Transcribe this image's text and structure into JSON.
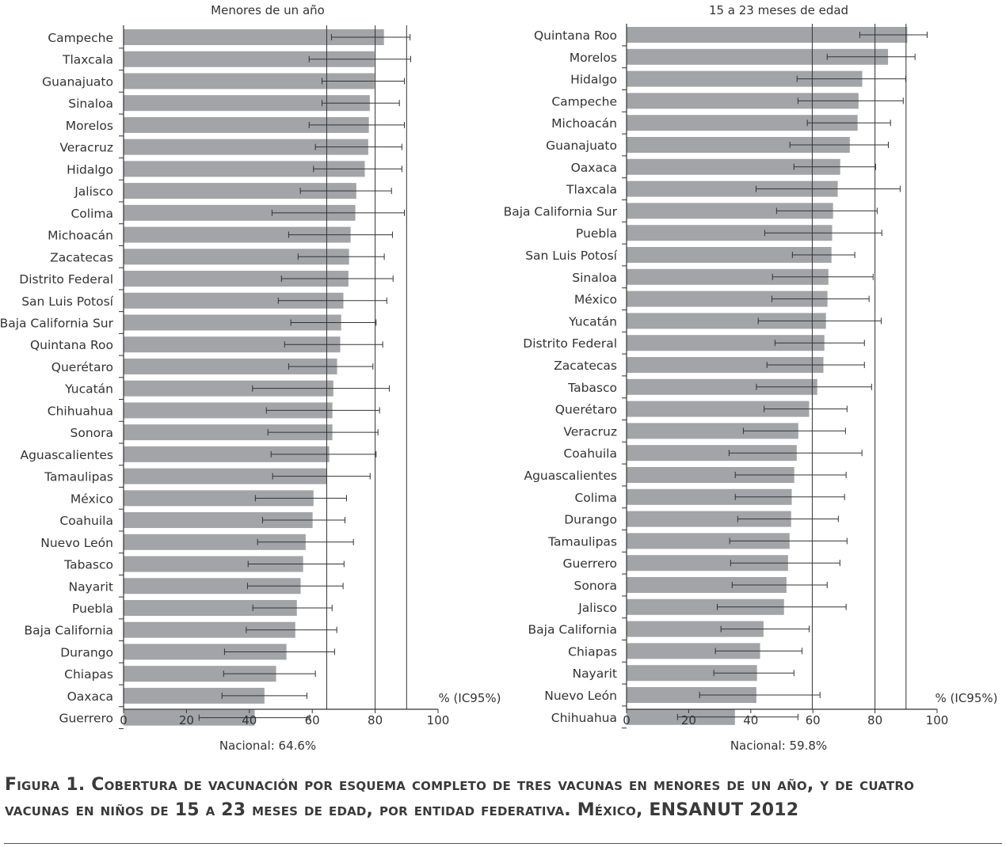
{
  "chart_data": [
    {
      "type": "bar",
      "orientation": "horizontal",
      "title": "Menores de un año",
      "xlabel": "% (IC95%)",
      "footer": "Nacional: 64.6%",
      "national": 64.6,
      "reference_lines": [
        80,
        90
      ],
      "xlim": [
        0,
        100
      ],
      "xticks": [
        "0",
        "20",
        "40",
        "60",
        "80",
        "100"
      ],
      "categories": [
        "Campeche",
        "Tlaxcala",
        "Guanajuato",
        "Sinaloa",
        "Morelos",
        "Veracruz",
        "Hidalgo",
        "Jalisco",
        "Colima",
        "Michoacán",
        "Zacatecas",
        "Distrito Federal",
        "San Luis Potosí",
        "Baja California Sur",
        "Quintana Roo",
        "Querétaro",
        "Yucatán",
        "Chihuahua",
        "Sonora",
        "Aguascalientes",
        "Tamaulipas",
        "México",
        "Coahuila",
        "Nuevo León",
        "Tabasco",
        "Nayarit",
        "Puebla",
        "Baja California",
        "Durango",
        "Chiapas",
        "Oaxaca",
        "Guerrero"
      ],
      "values": [
        82.8,
        79.8,
        79.8,
        78.3,
        78.0,
        77.8,
        76.7,
        74.0,
        73.7,
        72.2,
        71.7,
        71.5,
        69.9,
        69.2,
        68.9,
        67.9,
        66.7,
        66.4,
        66.4,
        65.4,
        64.7,
        60.4,
        60.1,
        57.9,
        57.1,
        56.3,
        55.1,
        54.6,
        51.8,
        48.5,
        44.8,
        41.7
      ],
      "ci_low": [
        66.1,
        59.0,
        63.1,
        63.1,
        59.0,
        61.0,
        60.4,
        56.2,
        47.2,
        52.5,
        55.5,
        50.2,
        49.2,
        53.2,
        51.2,
        52.5,
        41.0,
        45.4,
        45.9,
        46.9,
        47.4,
        41.9,
        44.2,
        42.6,
        39.6,
        39.4,
        41.1,
        39.0,
        32.1,
        31.8,
        31.3,
        24.0
      ],
      "ci_high": [
        91.1,
        91.3,
        89.3,
        87.7,
        89.3,
        88.5,
        88.5,
        85.2,
        89.3,
        85.5,
        82.9,
        85.7,
        83.7,
        80.3,
        82.4,
        79.3,
        84.5,
        81.4,
        80.9,
        80.3,
        78.4,
        70.9,
        70.4,
        73.1,
        70.1,
        69.8,
        66.3,
        67.8,
        67.1,
        61.0,
        58.3,
        59.2
      ],
      "bar_color": "#a3a4a8"
    },
    {
      "type": "bar",
      "orientation": "horizontal",
      "title": "15 a 23 meses de edad",
      "xlabel": "% (IC95%)",
      "footer": "Nacional: 59.8%",
      "national": 59.8,
      "reference_lines": [
        80,
        90
      ],
      "xlim": [
        0,
        100
      ],
      "xticks": [
        "0",
        "20",
        "40",
        "60",
        "80",
        "100"
      ],
      "categories": [
        "Quintana Roo",
        "Morelos",
        "Hidalgo",
        "Campeche",
        "Michoacán",
        "Guanajuato",
        "Oaxaca",
        "Tlaxcala",
        "Baja California Sur",
        "Puebla",
        "San Luis Potosí",
        "Sinaloa",
        "México",
        "Yucatán",
        "Distrito Federal",
        "Zacatecas",
        "Tabasco",
        "Querétaro",
        "Veracruz",
        "Coahuila",
        "Aguascalientes",
        "Colima",
        "Durango",
        "Tamaulipas",
        "Guerrero",
        "Sonora",
        "Jalisco",
        "Baja California",
        "Chiapas",
        "Nayarit",
        "Nuevo León",
        "Chihuahua"
      ],
      "values": [
        90.4,
        84.2,
        75.9,
        74.7,
        74.4,
        71.9,
        68.8,
        68.0,
        66.5,
        66.2,
        66.0,
        65.0,
        64.7,
        64.2,
        63.7,
        63.4,
        61.4,
        58.8,
        55.3,
        54.8,
        54.0,
        53.2,
        53.0,
        52.5,
        52.0,
        51.5,
        50.7,
        44.1,
        43.0,
        42.0,
        41.8,
        34.9
      ],
      "ci_low": [
        75.1,
        64.6,
        54.9,
        55.2,
        58.2,
        52.6,
        53.9,
        41.7,
        48.3,
        44.5,
        53.4,
        47.0,
        46.8,
        42.4,
        47.8,
        45.2,
        41.8,
        44.3,
        37.6,
        33.0,
        35.0,
        35.0,
        35.8,
        33.2,
        33.5,
        34.0,
        29.2,
        30.4,
        28.6,
        28.1,
        23.5,
        16.4
      ],
      "ci_high": [
        96.8,
        92.9,
        89.9,
        89.1,
        85.0,
        84.3,
        80.2,
        88.1,
        80.7,
        82.2,
        73.5,
        79.4,
        78.1,
        82.0,
        76.6,
        76.6,
        78.9,
        71.0,
        70.5,
        75.8,
        70.7,
        70.2,
        68.2,
        71.0,
        68.7,
        64.6,
        70.7,
        58.8,
        56.5,
        53.9,
        62.3,
        55.2
      ],
      "bar_color": "#a3a4a8"
    }
  ],
  "caption": {
    "line1": "Figura 1. Cobertura de vacunación por esquema completo de tres vacunas en menores de un año, y de cuatro",
    "line2": "vacunas en niños de 15 a 23 meses de edad, por entidad federativa. México, ENSANUT 2012"
  }
}
